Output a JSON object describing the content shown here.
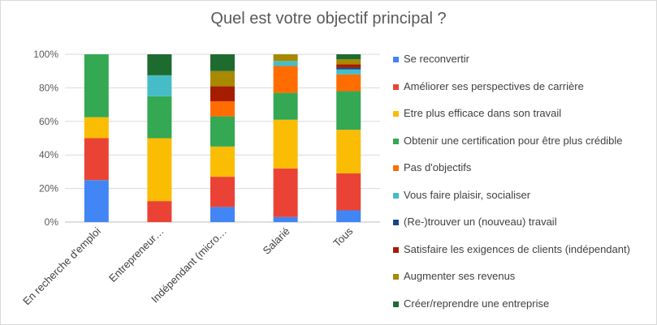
{
  "chart_data": {
    "type": "bar",
    "stacked": true,
    "percent_stacked": true,
    "title": "Quel est votre objectif principal ?",
    "xlabel": "",
    "ylabel": "",
    "ylim": [
      0,
      100
    ],
    "yticks": [
      "0%",
      "20%",
      "40%",
      "60%",
      "80%",
      "100%"
    ],
    "grid": true,
    "legend_position": "right",
    "categories": [
      "En recherche d'emploi",
      "Entrepreneur…",
      "Indépendant (micro…",
      "Salarié",
      "Tous"
    ],
    "series": [
      {
        "name": "Se reconvertir",
        "color": "#4285f4",
        "values": [
          25,
          0,
          9,
          3,
          7
        ]
      },
      {
        "name": "Améliorer ses perspectives de carrière",
        "color": "#ea4335",
        "values": [
          25,
          12.5,
          18,
          29,
          22
        ]
      },
      {
        "name": "Etre plus efficace dans son travail",
        "color": "#fbbc04",
        "values": [
          12.5,
          37.5,
          18,
          29,
          26
        ]
      },
      {
        "name": "Obtenir une certification pour être plus crédible",
        "color": "#34a853",
        "values": [
          37.5,
          25,
          18,
          16,
          23
        ]
      },
      {
        "name": "Pas d'objectifs",
        "color": "#ff6d01",
        "values": [
          0,
          0,
          9,
          16,
          10
        ]
      },
      {
        "name": "Vous faire plaisir, socialiser",
        "color": "#46bdc6",
        "values": [
          0,
          12.5,
          0,
          3,
          3
        ]
      },
      {
        "name": "(Re-)trouver un (nouveau) travail",
        "color": "#1c4587",
        "values": [
          0,
          0,
          0,
          0,
          1
        ]
      },
      {
        "name": "Satisfaire les exigences de clients (indépendant)",
        "color": "#a61c00",
        "values": [
          0,
          0,
          9,
          0,
          2
        ]
      },
      {
        "name": "Augmenter ses revenus",
        "color": "#a88900",
        "values": [
          0,
          0,
          9,
          4,
          3
        ]
      },
      {
        "name": "Créer/reprendre une entreprise",
        "color": "#1e6b30",
        "values": [
          0,
          12.5,
          10,
          0,
          3
        ]
      }
    ]
  }
}
